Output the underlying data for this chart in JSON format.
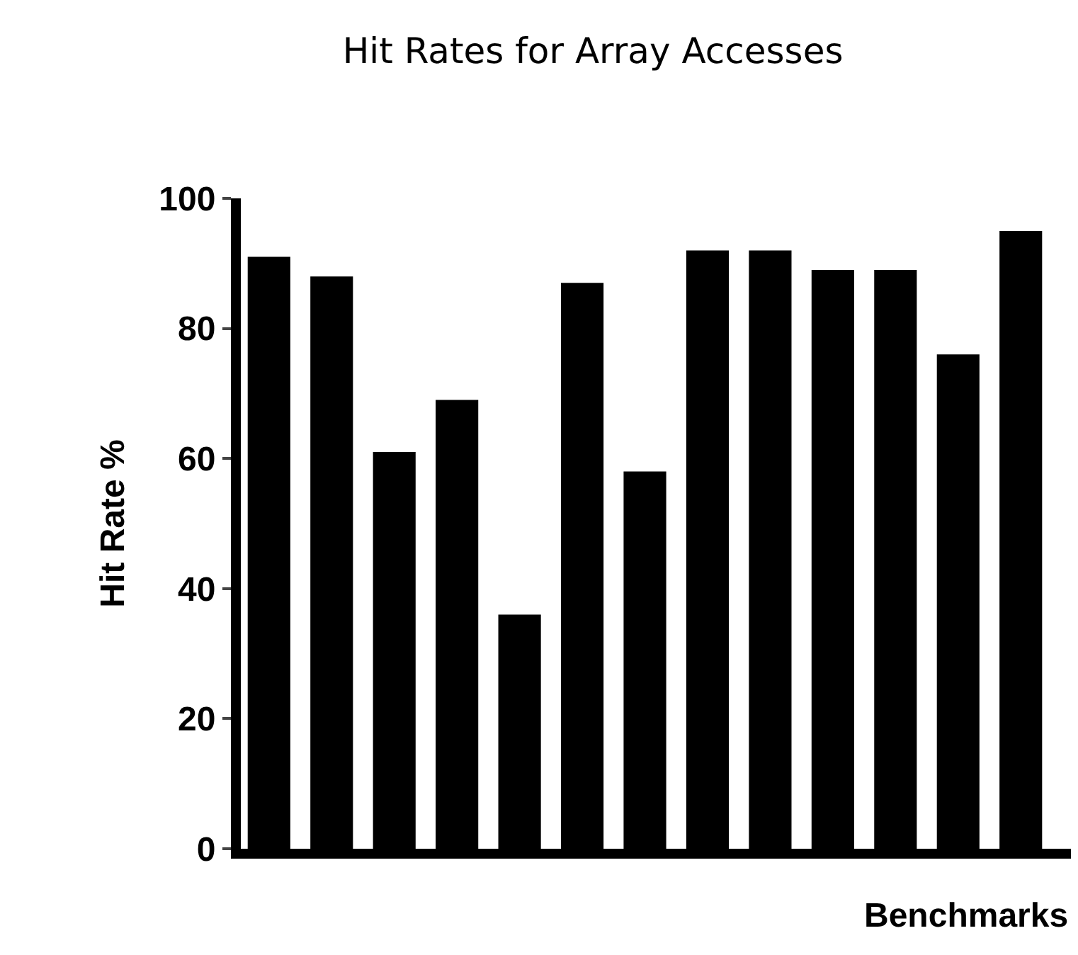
{
  "chart_data": {
    "type": "bar",
    "title": "Hit Rates for Array Accesses",
    "xlabel": "Benchmarks",
    "ylabel": "Hit Rate %",
    "categories": [
      null,
      null,
      null,
      null,
      null,
      null,
      null,
      null,
      null,
      null,
      null,
      null,
      null
    ],
    "values": [
      91,
      88,
      61,
      69,
      36,
      87,
      58,
      92,
      92,
      89,
      89,
      76,
      95
    ],
    "color": "#000000",
    "ylim": [
      0,
      100
    ],
    "yticks": [
      0,
      20,
      40,
      60,
      80,
      100
    ],
    "grid": false,
    "legend": false
  }
}
